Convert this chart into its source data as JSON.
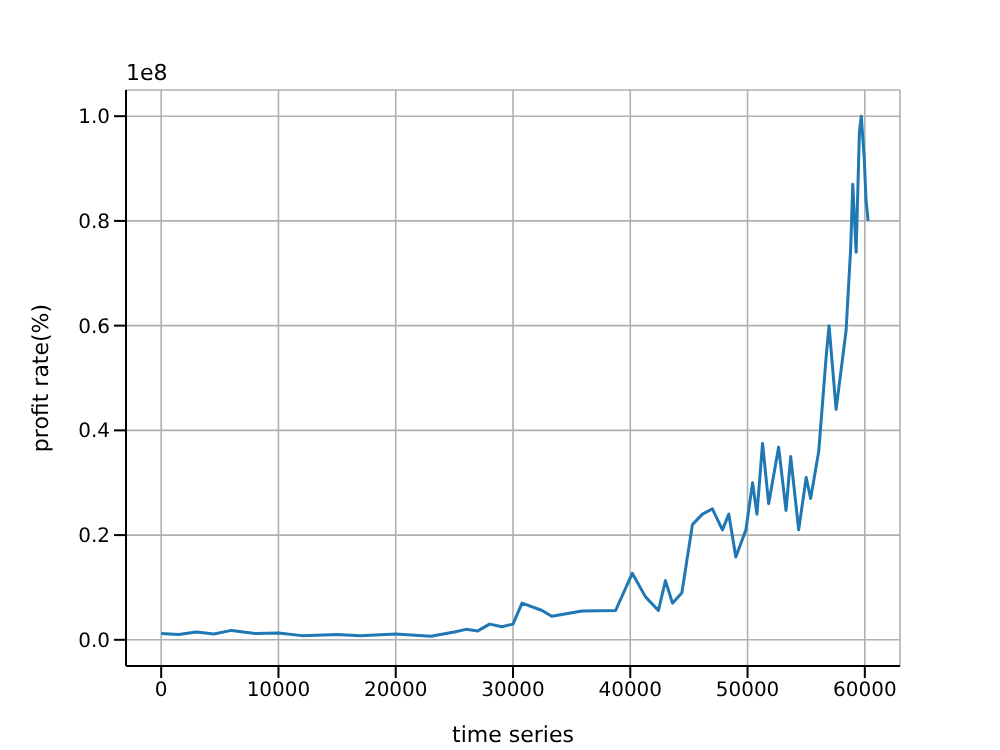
{
  "chart_data": {
    "type": "line",
    "xlabel": "time series",
    "ylabel": "profit rate(%)",
    "annotations": [
      "1e8"
    ],
    "x": [
      0,
      1500,
      3000,
      4500,
      6000,
      8000,
      10000,
      12000,
      15000,
      17000,
      20000,
      23000,
      25000,
      26000,
      27000,
      28000,
      29060,
      30000,
      30770,
      32480,
      33300,
      35900,
      38750,
      40170,
      41300,
      42400,
      43000,
      43600,
      44400,
      45300,
      46150,
      47000,
      47860,
      48400,
      49000,
      49860,
      50430,
      50800,
      51280,
      51800,
      52650,
      53280,
      53680,
      54360,
      55000,
      55380,
      56070,
      56700,
      56950,
      57550,
      58400,
      58800,
      58970,
      59260,
      59540,
      59700,
      59950,
      60100,
      60280
    ],
    "series": [
      {
        "color": "#1f77b4",
        "values": [
          0.012,
          0.01,
          0.015,
          0.011,
          0.018,
          0.012,
          0.013,
          0.008,
          0.01,
          0.008,
          0.011,
          0.007,
          0.015,
          0.02,
          0.017,
          0.03,
          0.025,
          0.03,
          0.07,
          0.056,
          0.045,
          0.055,
          0.056,
          0.127,
          0.082,
          0.056,
          0.113,
          0.07,
          0.09,
          0.22,
          0.24,
          0.25,
          0.21,
          0.24,
          0.158,
          0.21,
          0.3,
          0.24,
          0.375,
          0.26,
          0.368,
          0.247,
          0.35,
          0.21,
          0.31,
          0.27,
          0.36,
          0.54,
          0.6,
          0.44,
          0.59,
          0.75,
          0.87,
          0.74,
          0.97,
          1.0,
          0.92,
          0.84,
          0.8
        ]
      }
    ],
    "xlim": [
      -3000,
      63000
    ],
    "xticks": [
      0,
      10000,
      20000,
      30000,
      40000,
      50000,
      60000
    ],
    "ylim": [
      -0.05,
      1.05
    ],
    "yticks": [
      {
        "value": 0,
        "label": "0.0"
      },
      0.2,
      0.4,
      0.6,
      0.8,
      {
        "value": 1,
        "label": "1.0"
      }
    ],
    "grid": true,
    "legend": false,
    "marker": "none",
    "line_style": "solid"
  }
}
